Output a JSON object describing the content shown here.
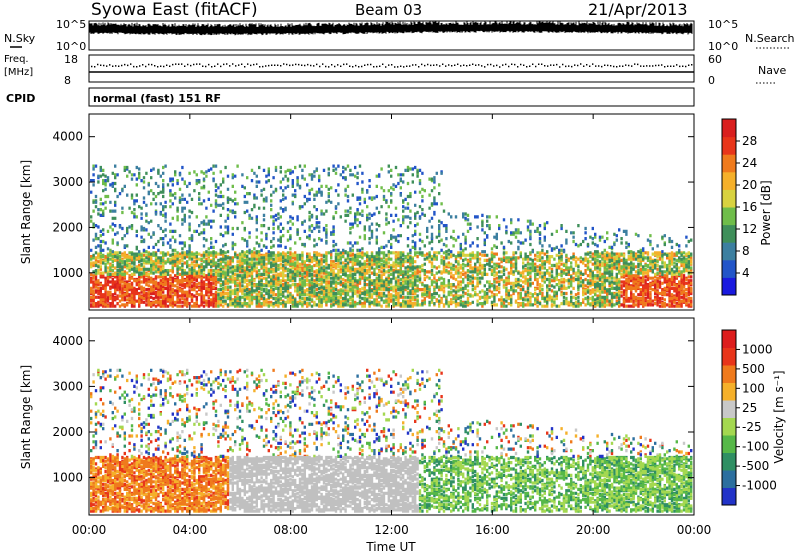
{
  "header": {
    "title": "Syowa East (fitACF)",
    "beam": "Beam 03",
    "date": "21/Apr/2013"
  },
  "noise_panel": {
    "left_label": "N.Sky",
    "right_label": "N.Search",
    "left_ticks": [
      "10^5",
      "10^0"
    ],
    "right_ticks": [
      "10^5",
      "10^0"
    ]
  },
  "freq_panel": {
    "left_label_1": "Freq.",
    "left_label_2": "[MHz]",
    "right_label": "Nave",
    "left_ticks": [
      "18",
      "8"
    ],
    "right_ticks": [
      "60",
      "0"
    ]
  },
  "cpid_panel": {
    "label": "CPID",
    "text": "normal (fast) 151 RF"
  },
  "power_panel": {
    "ylabel": "Slant Range [km]",
    "yticks": [
      "4000",
      "3000",
      "2000",
      "1000"
    ],
    "colorbar_label": "Power [dB]",
    "colorbar_ticks": [
      "28",
      "24",
      "20",
      "16",
      "12",
      "8",
      "4"
    ],
    "colors": [
      "#1a1adf",
      "#2255c8",
      "#3c7fa0",
      "#3f8f5a",
      "#6fbd4a",
      "#d8d240",
      "#f5b02a",
      "#ef7a1c",
      "#e8351a",
      "#d91f1f"
    ]
  },
  "velocity_panel": {
    "ylabel": "Slant Range [km]",
    "yticks": [
      "4000",
      "3000",
      "2000",
      "1000"
    ],
    "colorbar_label": "Velocity [m s⁻¹]",
    "colorbar_ticks": [
      "1000",
      "500",
      "100",
      "25",
      "-25",
      "-100",
      "-500",
      "-1000"
    ],
    "colors": [
      "#2233c8",
      "#2c6f9f",
      "#2f8f63",
      "#56b848",
      "#a4d850",
      "#c8c8c8",
      "#f5b02a",
      "#ef7a1c",
      "#e8351a",
      "#dd1d1d"
    ],
    "ground_scatter_color": "#c0c0c0"
  },
  "xaxis": {
    "label": "Time UT",
    "ticks": [
      "00:00",
      "04:00",
      "08:00",
      "12:00",
      "16:00",
      "20:00",
      "00:00"
    ]
  },
  "chart_data": {
    "type": "heatmap",
    "title": "Syowa East (fitACF)",
    "xlabel": "Time UT",
    "ylabel": "Slant Range [km]",
    "xlim": [
      "00:00",
      "24:00"
    ],
    "ylim": [
      180,
      4500
    ],
    "panels": [
      {
        "name": "Power",
        "unit": "dB",
        "colorbar_range": [
          0,
          30
        ]
      },
      {
        "name": "Velocity",
        "unit": "m s^-1",
        "colorbar_range": [
          -1000,
          1000
        ]
      }
    ],
    "cpid": "normal (fast) 151 RF",
    "beam": 3,
    "date": "21/Apr/2013"
  }
}
